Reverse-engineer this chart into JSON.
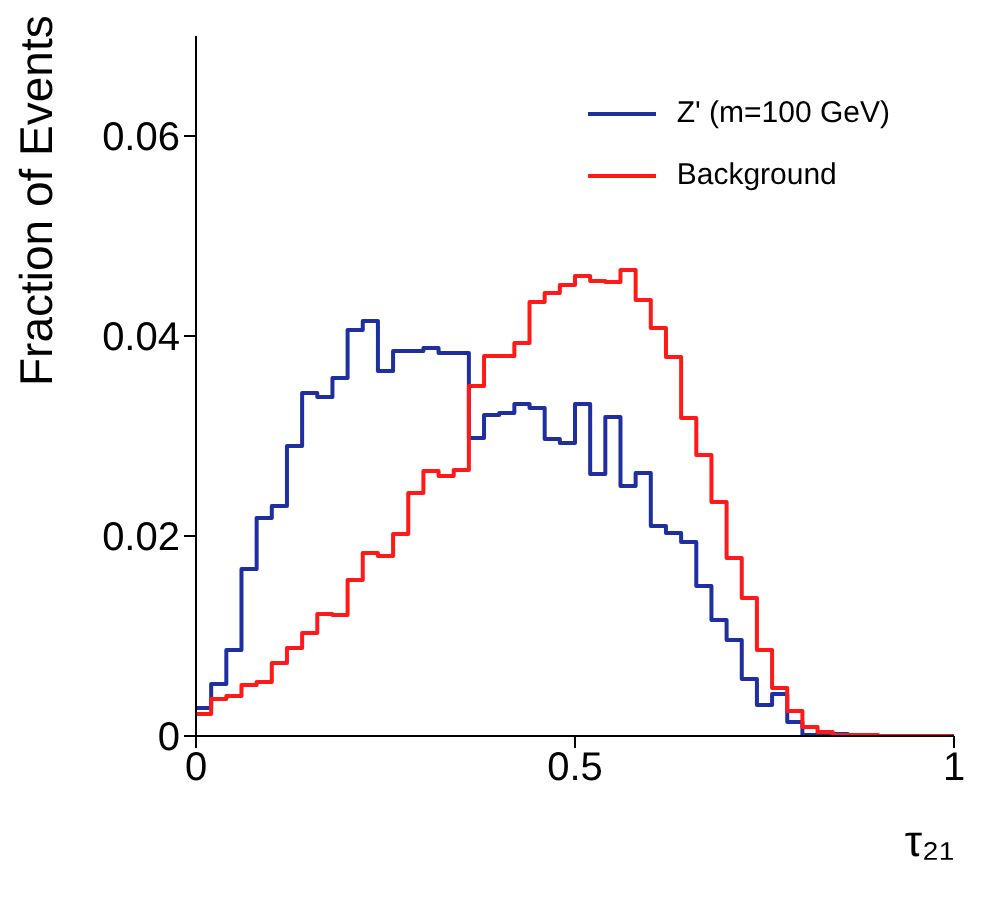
{
  "chart_data": {
    "type": "histogram",
    "xlabel": "τ₂₁",
    "ylabel": "Fraction of Events",
    "bins": [
      0,
      0.02,
      0.04,
      0.06,
      0.08,
      0.1,
      0.12,
      0.14,
      0.16,
      0.18,
      0.2,
      0.22,
      0.24,
      0.26,
      0.28,
      0.3,
      0.32,
      0.34,
      0.36,
      0.38,
      0.4,
      0.42,
      0.44,
      0.46,
      0.48,
      0.5,
      0.52,
      0.54,
      0.56,
      0.58,
      0.6,
      0.62,
      0.64,
      0.66,
      0.68,
      0.7,
      0.72,
      0.74,
      0.76,
      0.78,
      0.8,
      0.82,
      0.84,
      0.86,
      0.88,
      0.9,
      0.92,
      0.94,
      0.96,
      0.98,
      1
    ],
    "series": [
      {
        "name": "Z' (m=100 GeV)",
        "color": "#1f2fa0",
        "values": [
          0.0028,
          0.0052,
          0.0086,
          0.0167,
          0.0218,
          0.023,
          0.029,
          0.0343,
          0.0339,
          0.0358,
          0.0406,
          0.0415,
          0.0365,
          0.0385,
          0.0385,
          0.0388,
          0.0383,
          0.0383,
          0.0298,
          0.0321,
          0.0323,
          0.0332,
          0.0328,
          0.0297,
          0.0293,
          0.0332,
          0.0262,
          0.0319,
          0.025,
          0.0263,
          0.021,
          0.0203,
          0.0194,
          0.015,
          0.0116,
          0.0096,
          0.0057,
          0.0031,
          0.0042,
          0.0014,
          0.0001,
          0.0003,
          0.0002,
          0,
          0,
          0,
          0,
          0,
          0,
          0
        ]
      },
      {
        "name": "Background",
        "color": "#ff1a1a",
        "values": [
          0.0022,
          0.0037,
          0.004,
          0.0051,
          0.0054,
          0.0073,
          0.0088,
          0.0103,
          0.0122,
          0.0121,
          0.0156,
          0.0183,
          0.018,
          0.0202,
          0.0243,
          0.0265,
          0.026,
          0.0266,
          0.035,
          0.038,
          0.038,
          0.0393,
          0.0434,
          0.0443,
          0.0451,
          0.046,
          0.0455,
          0.0454,
          0.0466,
          0.0436,
          0.0408,
          0.0379,
          0.0318,
          0.0281,
          0.0234,
          0.0178,
          0.0138,
          0.0086,
          0.0048,
          0.0025,
          0.0009,
          0.0004,
          0.0001,
          0.0001,
          0.0001,
          0,
          0,
          0,
          0,
          0
        ]
      }
    ],
    "xlim": [
      0,
      1
    ],
    "xticks": [
      0,
      0.5,
      1
    ],
    "ylim": [
      0,
      0.07
    ],
    "yticks": [
      0,
      0.02,
      0.04,
      0.06
    ],
    "grid": false,
    "legend": "top right"
  }
}
